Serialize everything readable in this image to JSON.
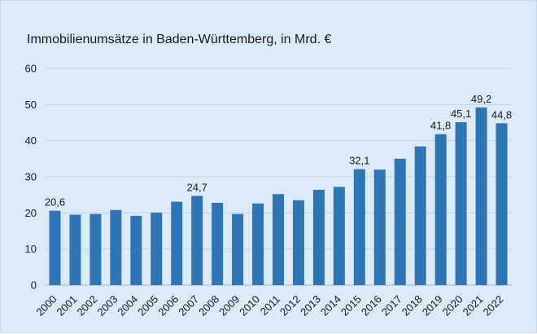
{
  "chart_data": {
    "type": "bar",
    "title": "Immobilienumsätze  in Baden-Württemberg,  in Mrd. €",
    "xlabel": "",
    "ylabel": "",
    "ylim": [
      0,
      60
    ],
    "yticks": [
      0,
      10,
      20,
      30,
      40,
      50,
      60
    ],
    "grid": true,
    "legend": "none",
    "bar_color": "#2e75b6",
    "background_color": "#dce9f7",
    "categories": [
      "2000",
      "2001",
      "2002",
      "2003",
      "2004",
      "2005",
      "2006",
      "2007",
      "2008",
      "2009",
      "2010",
      "2011",
      "2012",
      "2013",
      "2014",
      "2015",
      "2016",
      "2017",
      "2018",
      "2019",
      "2020",
      "2021",
      "2022"
    ],
    "values": [
      20.6,
      19.5,
      19.7,
      20.8,
      19.2,
      20.1,
      23.1,
      24.7,
      22.8,
      19.7,
      22.6,
      25.2,
      23.5,
      26.4,
      27.2,
      32.1,
      32.0,
      35.0,
      38.4,
      41.8,
      45.1,
      49.2,
      44.8
    ],
    "data_labels": {
      "2000": "20,6",
      "2007": "24,7",
      "2015": "32,1",
      "2019": "41,8",
      "2020": "45,1",
      "2021": "49,2",
      "2022": "44,8"
    }
  }
}
